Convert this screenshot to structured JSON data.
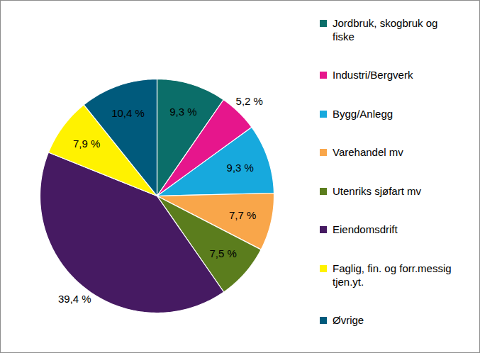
{
  "chart_data": {
    "type": "pie",
    "categories": [
      "Jordbruk, skogbruk og fiske",
      "Industri/Bergverk",
      "Bygg/Anlegg",
      "Varehandel mv",
      "Utenriks sjøfart mv",
      "Eiendomsdrift",
      "Faglig, fin. og forr.messig tjen.yt.",
      "Øvrige"
    ],
    "values": [
      9.3,
      5.2,
      9.3,
      7.7,
      7.5,
      39.4,
      7.9,
      10.4
    ],
    "value_labels": [
      "9,3 %",
      "5,2 %",
      "9,3 %",
      "7,7 %",
      "7,5 %",
      "39,4 %",
      "7,9 %",
      "10,4 %"
    ],
    "colors": [
      "#0b6e69",
      "#e6168c",
      "#17a9dd",
      "#f9a64a",
      "#5b7d1d",
      "#461a62",
      "#fff200",
      "#005a7c"
    ],
    "data_labels": true,
    "legend": "right"
  }
}
